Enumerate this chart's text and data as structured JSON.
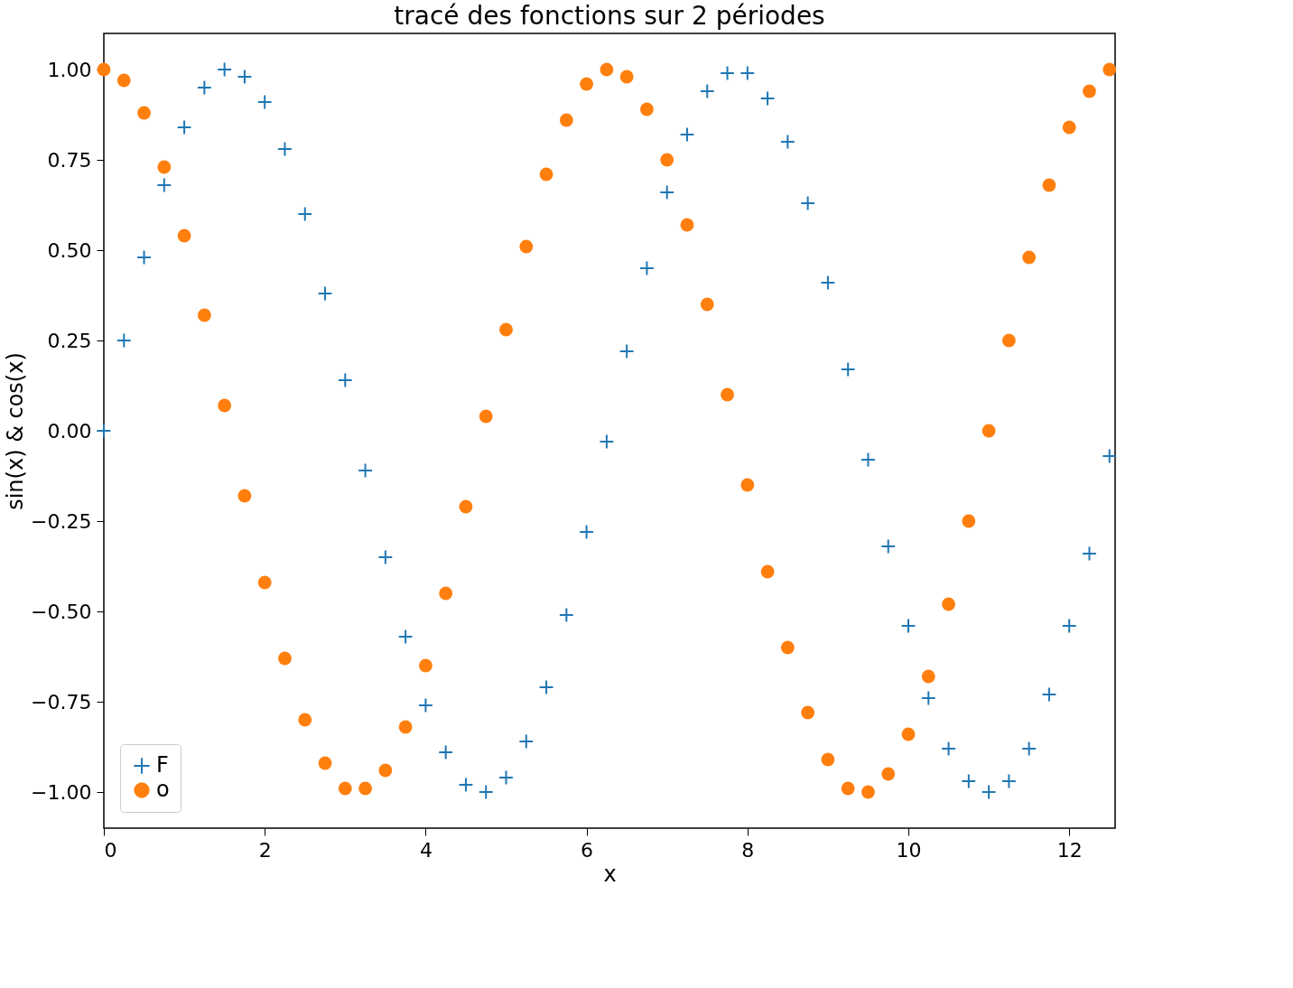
{
  "chart_data": {
    "type": "scatter",
    "title": "tracé des fonctions sur 2 périodes",
    "xlabel": "x",
    "ylabel": "sin(x) & cos(x)",
    "x": [
      0,
      0.25,
      0.5,
      0.75,
      1.0,
      1.25,
      1.5,
      1.75,
      2.0,
      2.25,
      2.5,
      2.75,
      3.0,
      3.25,
      3.5,
      3.75,
      4.0,
      4.25,
      4.5,
      4.75,
      5.0,
      5.25,
      5.5,
      5.75,
      6.0,
      6.25,
      6.5,
      6.75,
      7.0,
      7.25,
      7.5,
      7.75,
      8.0,
      8.25,
      8.5,
      8.75,
      9.0,
      9.25,
      9.5,
      9.75,
      10.0,
      10.25,
      10.5,
      10.75,
      11.0,
      11.25,
      11.5,
      11.75,
      12.0,
      12.25,
      12.5
    ],
    "series": [
      {
        "name": "F",
        "color": "#1f77b4",
        "marker": "cross",
        "values": [
          0,
          0.25,
          0.48,
          0.68,
          0.84,
          0.95,
          1.0,
          0.98,
          0.91,
          0.78,
          0.6,
          0.38,
          0.14,
          -0.11,
          -0.35,
          -0.57,
          -0.76,
          -0.89,
          -0.98,
          -1.0,
          -0.96,
          -0.86,
          -0.71,
          -0.51,
          -0.28,
          -0.03,
          0.22,
          0.45,
          0.66,
          0.82,
          0.94,
          0.99,
          0.99,
          0.92,
          0.8,
          0.63,
          0.41,
          0.17,
          -0.08,
          -0.32,
          -0.54,
          -0.74,
          -0.88,
          -0.97,
          -1.0,
          -0.97,
          -0.88,
          -0.73,
          -0.54,
          -0.34,
          -0.07
        ]
      },
      {
        "name": "o",
        "color": "#ff7f0e",
        "marker": "circle",
        "values": [
          1,
          0.97,
          0.88,
          0.73,
          0.54,
          0.32,
          0.07,
          -0.18,
          -0.42,
          -0.63,
          -0.8,
          -0.92,
          -0.99,
          -0.99,
          -0.94,
          -0.82,
          -0.65,
          -0.45,
          -0.21,
          0.04,
          0.28,
          0.51,
          0.71,
          0.86,
          0.96,
          1.0,
          0.98,
          0.89,
          0.75,
          0.57,
          0.35,
          0.1,
          -0.15,
          -0.39,
          -0.6,
          -0.78,
          -0.91,
          -0.99,
          -1.0,
          -0.95,
          -0.84,
          -0.68,
          -0.48,
          -0.25,
          0.0,
          0.25,
          0.48,
          0.68,
          0.84,
          0.94,
          1.0
        ]
      }
    ],
    "xlim": [
      0,
      12.57
    ],
    "xticks": [
      0,
      2,
      4,
      6,
      8,
      10,
      12
    ],
    "ylim": [
      -1.1,
      1.1
    ],
    "yticks": [
      {
        "value": -1,
        "label": "−1.00"
      },
      {
        "value": -0.75,
        "label": "−0.75"
      },
      {
        "value": -0.5,
        "label": "−0.50"
      },
      {
        "value": -0.25,
        "label": "−0.25"
      },
      {
        "value": 0,
        "label": "0.00"
      },
      {
        "value": 0.25,
        "label": "0.25"
      },
      {
        "value": 0.5,
        "label": "0.50"
      },
      {
        "value": 0.75,
        "label": "0.75"
      },
      {
        "value": 1,
        "label": "1.00"
      }
    ],
    "grid": false,
    "legend": "bottom left"
  }
}
